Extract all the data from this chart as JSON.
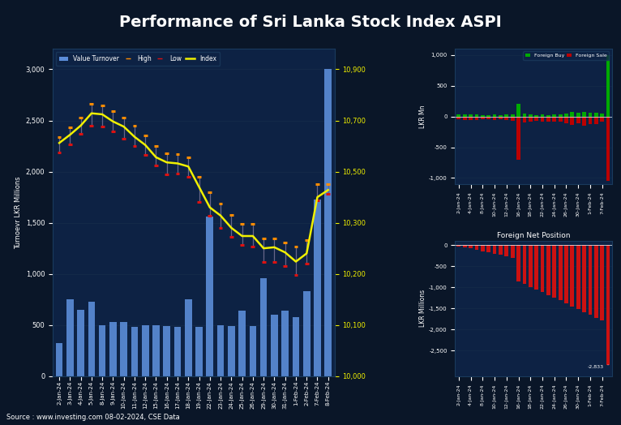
{
  "title": "Performance of Sri Lanka Stock Index ASPI",
  "title_color": "#ffffff",
  "bg_color": "#0a1628",
  "plot_bg": "#0d2244",
  "source_text": "Source : www.investing.com 08-02-2024, CSE Data",
  "dates": [
    "2-Jan-24",
    "3-Jan-24",
    "4-Jan-24",
    "5-Jan-24",
    "8-Jan-24",
    "9-Jan-24",
    "10-Jan-24",
    "11-Jan-24",
    "12-Jan-24",
    "15-Jan-24",
    "16-Jan-24",
    "17-Jan-24",
    "18-Jan-24",
    "19-Jan-24",
    "22-Jan-24",
    "23-Jan-24",
    "24-Jan-24",
    "25-Jan-24",
    "26-Jan-24",
    "29-Jan-24",
    "30-Jan-24",
    "31-Jan-24",
    "1-Feb-24",
    "2-Feb-24",
    "7-Feb-24",
    "8-Feb-24"
  ],
  "turnover_vals": [
    320,
    750,
    650,
    730,
    500,
    530,
    530,
    480,
    500,
    500,
    490,
    480,
    750,
    480,
    1560,
    500,
    490,
    640,
    490,
    960,
    600,
    640,
    580,
    830,
    1730,
    3000
  ],
  "index_vals": [
    2280,
    2360,
    2450,
    2570,
    2560,
    2490,
    2440,
    2340,
    2260,
    2140,
    2090,
    2080,
    2050,
    1850,
    1650,
    1570,
    1450,
    1370,
    1370,
    1250,
    1260,
    1210,
    1120,
    1200,
    1750,
    1820
  ],
  "high_vals": [
    2340,
    2430,
    2530,
    2660,
    2650,
    2590,
    2530,
    2450,
    2350,
    2250,
    2180,
    2170,
    2140,
    1950,
    1800,
    1690,
    1580,
    1490,
    1490,
    1350,
    1350,
    1310,
    1270,
    1330,
    1880,
    1880
  ],
  "low_vals": [
    2190,
    2270,
    2370,
    2450,
    2440,
    2390,
    2320,
    2250,
    2160,
    2060,
    1970,
    1980,
    1950,
    1700,
    1570,
    1450,
    1360,
    1280,
    1270,
    1120,
    1120,
    1080,
    990,
    1100,
    1720,
    1780
  ],
  "buy_dates": [
    "2-Jan-24",
    "3-Jan-24",
    "4-Jan-24",
    "5-Jan-24",
    "8-Jan-24",
    "9-Jan-24",
    "10-Jan-24",
    "11-Jan-24",
    "12-Jan-24",
    "15-Jan-24",
    "16-Jan-24",
    "17-Jan-24",
    "18-Jan-24",
    "19-Jan-24",
    "22-Jan-24",
    "23-Jan-24",
    "24-Jan-24",
    "25-Jan-24",
    "26-Jan-24",
    "29-Jan-24",
    "30-Jan-24",
    "31-Jan-24",
    "1-Feb-24",
    "2-Feb-24",
    "7-Feb-24",
    "8-Feb-24"
  ],
  "buy_vals": [
    30,
    30,
    35,
    30,
    25,
    25,
    30,
    25,
    30,
    40,
    200,
    45,
    35,
    25,
    30,
    25,
    30,
    30,
    50,
    75,
    60,
    80,
    60,
    60,
    45,
    1000
  ],
  "sale_vals": [
    -50,
    -55,
    -60,
    -55,
    -45,
    -50,
    -55,
    -50,
    -55,
    -65,
    -700,
    -100,
    -90,
    -75,
    -90,
    -85,
    -90,
    -90,
    -110,
    -140,
    -115,
    -145,
    -120,
    -120,
    -90,
    -1050
  ],
  "net_vals": [
    -25,
    -50,
    -80,
    -110,
    -140,
    -170,
    -200,
    -235,
    -270,
    -310,
    -850,
    -920,
    -990,
    -1050,
    -1115,
    -1180,
    -1245,
    -1310,
    -1380,
    -1455,
    -1520,
    -1590,
    -1655,
    -1725,
    -1790,
    -2833
  ],
  "bar_color": "#5b8dd9",
  "index_color": "#f0f000",
  "high_color": "#ff8c00",
  "low_color": "#dd1111",
  "buy_color": "#00aa00",
  "sale_color": "#bb0000",
  "net_pos_color": "#cc1111",
  "annotation_color": "#ffffff"
}
